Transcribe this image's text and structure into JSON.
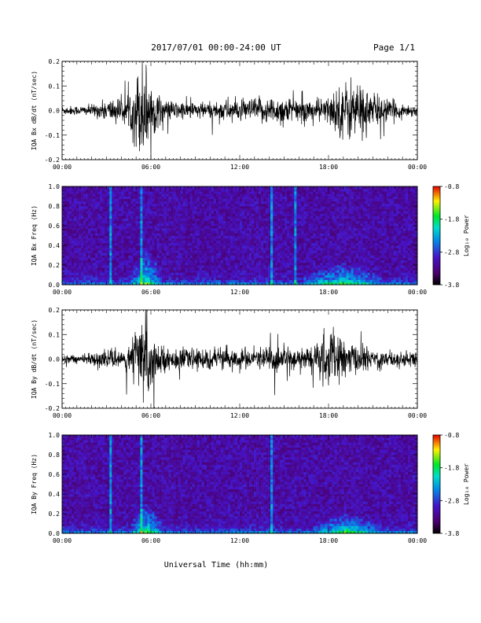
{
  "header": {
    "date_range": "2017/07/01  00:00-24:00 UT",
    "page": "Page 1/1"
  },
  "chart_data": [
    {
      "type": "line",
      "ylabel": "IQA Bx dB/dt (nT/sec)",
      "ylim": [
        -0.2,
        0.2
      ],
      "yticks": [
        "-0.2",
        "-0.1",
        "0.0",
        "0.1",
        "0.2"
      ],
      "xlim": [
        0,
        24
      ],
      "xticks": [
        "00:00",
        "06:00",
        "12:00",
        "18:00",
        "00:00"
      ],
      "envelope": {
        "t": [
          0,
          1,
          2,
          3,
          3.5,
          4,
          4.5,
          5,
          5.3,
          5.6,
          6,
          6.5,
          7,
          8,
          9,
          10,
          11,
          11.5,
          12,
          13,
          14,
          15,
          16,
          17,
          18,
          18.5,
          19,
          19.5,
          20,
          21,
          22,
          23,
          24
        ],
        "amp": [
          0.02,
          0.02,
          0.025,
          0.045,
          0.06,
          0.05,
          0.07,
          0.16,
          0.22,
          0.22,
          0.14,
          0.07,
          0.045,
          0.04,
          0.04,
          0.035,
          0.05,
          0.055,
          0.04,
          0.055,
          0.06,
          0.065,
          0.05,
          0.05,
          0.06,
          0.1,
          0.12,
          0.14,
          0.13,
          0.08,
          0.05,
          0.03,
          0.025
        ]
      }
    },
    {
      "type": "heatmap",
      "ylabel": "IQA Bx Freq (Hz)",
      "ylim": [
        0.0,
        1.0
      ],
      "yticks": [
        "0.0",
        "0.2",
        "0.4",
        "0.6",
        "0.8",
        "1.0"
      ],
      "xlim": [
        0,
        24
      ],
      "xticks": [
        "00:00",
        "06:00",
        "12:00",
        "18:00",
        "00:00"
      ],
      "colorbar": {
        "label": "Log₁₀ Power",
        "ticks": [
          "-0.8",
          "-1.8",
          "-2.8",
          "-3.8"
        ],
        "range": [
          -3.8,
          -0.8
        ]
      },
      "stripes": [
        3.3,
        5.3,
        14.1,
        15.8
      ],
      "events": [
        {
          "t": 5.7,
          "width": 0.9,
          "fmax": 0.35
        },
        {
          "t": 19.0,
          "width": 2.2,
          "fmax": 0.22
        }
      ]
    },
    {
      "type": "line",
      "ylabel": "IQA By dB/dt (nT/sec)",
      "ylim": [
        -0.2,
        0.2
      ],
      "yticks": [
        "-0.2",
        "-0.1",
        "0.0",
        "0.1",
        "0.2"
      ],
      "xlim": [
        0,
        24
      ],
      "xticks": [
        "00:00",
        "06:00",
        "12:00",
        "18:00",
        "00:00"
      ],
      "envelope": {
        "t": [
          0,
          1,
          2,
          3,
          3.5,
          4,
          4.5,
          5,
          5.3,
          5.6,
          6,
          6.5,
          7,
          8,
          9,
          10,
          11,
          11.5,
          12,
          13,
          14,
          15,
          16,
          17,
          17.5,
          18,
          18.5,
          19,
          20,
          21,
          22,
          23,
          24
        ],
        "amp": [
          0.02,
          0.02,
          0.025,
          0.035,
          0.04,
          0.04,
          0.06,
          0.14,
          0.2,
          0.22,
          0.13,
          0.06,
          0.05,
          0.045,
          0.04,
          0.05,
          0.045,
          0.05,
          0.045,
          0.05,
          0.055,
          0.06,
          0.05,
          0.055,
          0.1,
          0.14,
          0.12,
          0.08,
          0.06,
          0.05,
          0.04,
          0.035,
          0.03
        ]
      }
    },
    {
      "type": "heatmap",
      "ylabel": "IQA By Freq (Hz)",
      "ylim": [
        0.0,
        1.0
      ],
      "yticks": [
        "0.0",
        "0.2",
        "0.4",
        "0.6",
        "0.8",
        "1.0"
      ],
      "xlim": [
        0,
        24
      ],
      "xticks": [
        "00:00",
        "06:00",
        "12:00",
        "18:00",
        "00:00"
      ],
      "colorbar": {
        "label": "Log₁₀ Power",
        "ticks": [
          "-0.8",
          "-1.8",
          "-2.8",
          "-3.8"
        ],
        "range": [
          -3.8,
          -0.8
        ]
      },
      "stripes": [
        3.3,
        5.3,
        14.1
      ],
      "events": [
        {
          "t": 5.7,
          "width": 0.9,
          "fmax": 0.3
        },
        {
          "t": 19.3,
          "width": 2.0,
          "fmax": 0.2
        }
      ]
    }
  ],
  "xlabel": "Universal Time (hh:mm)"
}
